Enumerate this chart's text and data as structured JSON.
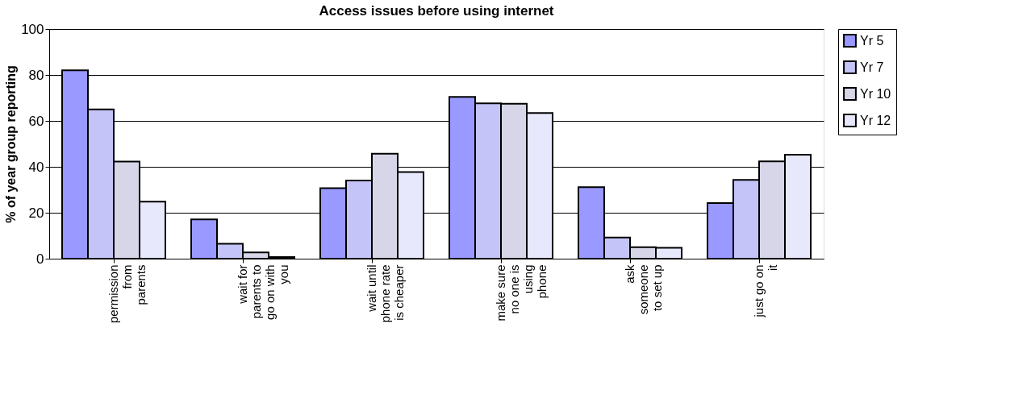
{
  "chart_data": {
    "type": "bar",
    "title": "Access issues before using internet",
    "ylabel": "% of year group reporting",
    "categories": [
      "permission\nfrom\nparents",
      "wait for\nparents to\ngo on with\nyou",
      "wait until\nphone rate\nis cheaper",
      "make sure\nno one is\nusing\nphone",
      "ask\nsomeone\nto set up",
      "just go on\nit"
    ],
    "series": [
      {
        "name": "Yr 5",
        "color": "#9999ff",
        "values": [
          82.0,
          17.1,
          30.7,
          70.4,
          31.1,
          24.2
        ]
      },
      {
        "name": "Yr 7",
        "color": "#c4c4f8",
        "values": [
          65.0,
          6.5,
          34.0,
          67.6,
          9.2,
          34.3
        ]
      },
      {
        "name": "Yr 10",
        "color": "#d6d6e8",
        "values": [
          42.3,
          2.7,
          45.7,
          67.5,
          5.0,
          42.4
        ]
      },
      {
        "name": "Yr 12",
        "color": "#e8e8fc",
        "values": [
          24.8,
          0.7,
          37.7,
          63.4,
          4.7,
          45.3
        ]
      }
    ],
    "ylim": [
      0,
      100
    ],
    "yticks": [
      0,
      20,
      40,
      60,
      80,
      100
    ],
    "grid": "y",
    "legend": "right"
  }
}
